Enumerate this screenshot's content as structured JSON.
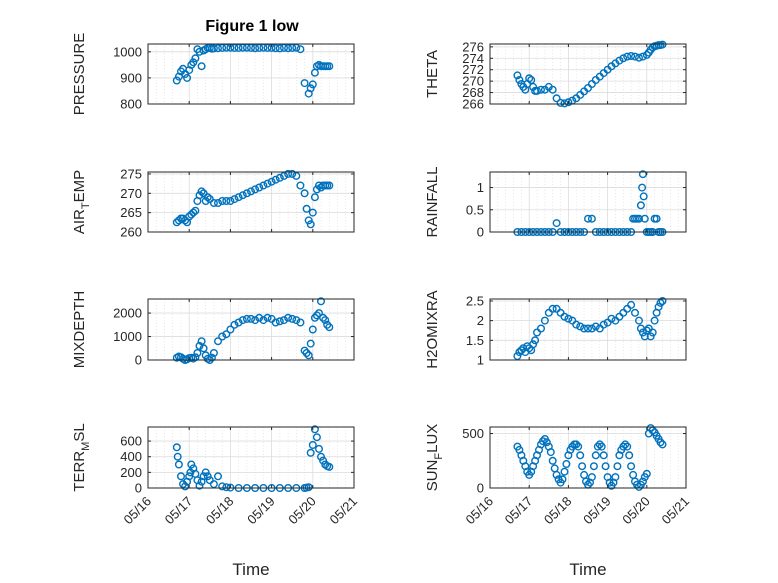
{
  "figure": {
    "title": "Figure 1 low"
  },
  "colors": {
    "marker": "#0072bd",
    "axis": "#262626",
    "grid": "#dcdcdc"
  },
  "chart_data": [
    {
      "type": "scatter",
      "title": "Figure 1 low",
      "ylabel": "PRESSURE",
      "ylabel_main": "PRESSURE",
      "ylabel_sub": "",
      "xlabel": "",
      "ylim": [
        800,
        1030
      ],
      "yticks": [
        800,
        900,
        1000
      ],
      "grid": true,
      "x": [
        16.7,
        16.75,
        16.8,
        16.85,
        16.9,
        16.95,
        17.0,
        17.05,
        17.1,
        17.15,
        17.2,
        17.25,
        17.3,
        17.35,
        17.4,
        17.45,
        17.5,
        17.55,
        17.6,
        17.7,
        17.8,
        17.9,
        18.0,
        18.1,
        18.2,
        18.3,
        18.4,
        18.5,
        18.6,
        18.7,
        18.8,
        18.9,
        19.0,
        19.1,
        19.2,
        19.3,
        19.4,
        19.5,
        19.6,
        19.7,
        19.8,
        19.9,
        19.95,
        20.0,
        20.05,
        20.1,
        20.15,
        20.2,
        20.25,
        20.3,
        20.35,
        20.4
      ],
      "y": [
        890,
        905,
        925,
        935,
        915,
        900,
        930,
        950,
        960,
        975,
        1010,
        1000,
        945,
        1005,
        1010,
        1015,
        1015,
        1012,
        1013,
        1014,
        1015,
        1016,
        1016,
        1015,
        1015,
        1016,
        1016,
        1015,
        1014,
        1015,
        1016,
        1015,
        1015,
        1014,
        1013,
        1015,
        1014,
        1015,
        1016,
        1010,
        880,
        840,
        860,
        875,
        920,
        945,
        950,
        945,
        945,
        945,
        945,
        945
      ]
    },
    {
      "type": "scatter",
      "ylabel": "THETA",
      "ylabel_main": "THETA",
      "ylabel_sub": "",
      "xlabel": "",
      "ylim": [
        266,
        276.5
      ],
      "yticks": [
        266,
        268,
        270,
        272,
        274,
        276
      ],
      "grid": true,
      "x": [
        16.7,
        16.75,
        16.8,
        16.85,
        16.9,
        16.95,
        17.0,
        17.05,
        17.1,
        17.15,
        17.2,
        17.3,
        17.4,
        17.5,
        17.6,
        17.7,
        17.8,
        17.9,
        18.0,
        18.1,
        18.2,
        18.3,
        18.4,
        18.5,
        18.6,
        18.7,
        18.8,
        18.9,
        19.0,
        19.1,
        19.2,
        19.3,
        19.4,
        19.5,
        19.6,
        19.7,
        19.8,
        19.9,
        20.0,
        20.05,
        20.1,
        20.15,
        20.2,
        20.25,
        20.3,
        20.35,
        20.4
      ],
      "y": [
        271,
        270.2,
        269.5,
        269,
        268.5,
        269.5,
        270.5,
        270.2,
        269,
        268.3,
        268.3,
        268.5,
        268.5,
        269,
        268.5,
        267,
        266.2,
        266.1,
        266.3,
        266.6,
        267,
        267.6,
        268.2,
        268.8,
        269.5,
        270.2,
        270.8,
        271.4,
        272,
        272.6,
        273.1,
        273.6,
        274,
        274.3,
        274.4,
        274.3,
        274.1,
        274.3,
        274.6,
        275,
        275.5,
        275.9,
        276.1,
        276.2,
        276.3,
        276.3,
        276.4
      ]
    },
    {
      "type": "scatter",
      "ylabel": "AIR_TEMP",
      "ylabel_main": "AIR",
      "ylabel_sub": "T",
      "ylabel_end": "EMP",
      "xlabel": "",
      "ylim": [
        260,
        275.5
      ],
      "yticks": [
        260,
        265,
        270,
        275
      ],
      "grid": true,
      "x": [
        16.7,
        16.75,
        16.8,
        16.85,
        16.9,
        16.95,
        17.0,
        17.05,
        17.1,
        17.15,
        17.2,
        17.25,
        17.3,
        17.35,
        17.4,
        17.45,
        17.5,
        17.6,
        17.7,
        17.8,
        17.9,
        18.0,
        18.1,
        18.2,
        18.3,
        18.4,
        18.5,
        18.6,
        18.7,
        18.8,
        18.9,
        19.0,
        19.1,
        19.2,
        19.3,
        19.4,
        19.5,
        19.6,
        19.7,
        19.8,
        19.85,
        19.9,
        19.95,
        20.0,
        20.05,
        20.1,
        20.15,
        20.2,
        20.25,
        20.3,
        20.35,
        20.4
      ],
      "y": [
        262.5,
        263,
        263.5,
        263.5,
        263,
        262.5,
        264,
        264.5,
        265,
        265.5,
        268,
        269.5,
        270.5,
        270,
        268,
        269,
        268.5,
        267.5,
        267.5,
        268,
        268,
        268,
        268.5,
        269,
        269.5,
        270,
        270.5,
        271,
        271.5,
        272,
        272.5,
        273,
        273.5,
        274,
        274.5,
        275,
        275,
        274.5,
        272,
        270,
        266,
        263,
        262,
        265,
        269,
        271,
        272,
        271.5,
        272,
        272,
        272,
        272
      ]
    },
    {
      "type": "scatter",
      "ylabel": "RAINFALL",
      "ylabel_main": "RAINFALL",
      "ylabel_sub": "",
      "xlabel": "",
      "ylim": [
        0,
        1.35
      ],
      "yticks": [
        0,
        0.5,
        1
      ],
      "grid": true,
      "x": [
        16.7,
        16.8,
        16.9,
        17.0,
        17.1,
        17.2,
        17.3,
        17.4,
        17.5,
        17.6,
        17.7,
        17.8,
        17.9,
        18.0,
        18.1,
        18.2,
        18.3,
        18.4,
        18.5,
        18.6,
        18.7,
        18.8,
        18.9,
        19.0,
        19.1,
        19.2,
        19.3,
        19.4,
        19.5,
        19.6,
        19.65,
        19.7,
        19.75,
        19.8,
        19.85,
        19.88,
        19.9,
        19.92,
        19.95,
        20.0,
        20.05,
        20.1,
        20.15,
        20.2,
        20.25,
        20.3,
        20.35,
        20.4
      ],
      "y": [
        0,
        0,
        0,
        0,
        0,
        0,
        0,
        0,
        0,
        0,
        0.2,
        0,
        0,
        0,
        0,
        0,
        0,
        0,
        0.3,
        0.3,
        0,
        0,
        0,
        0,
        0,
        0,
        0,
        0,
        0,
        0,
        0.3,
        0.3,
        0.3,
        0.3,
        0.6,
        1.0,
        1.3,
        0.8,
        0.3,
        0,
        0,
        0,
        0,
        0.3,
        0.3,
        0,
        0,
        0
      ]
    },
    {
      "type": "scatter",
      "ylabel": "MIXDEPTH",
      "ylabel_main": "MIXDEPTH",
      "ylabel_sub": "",
      "xlabel": "",
      "ylim": [
        0,
        2600
      ],
      "yticks": [
        0,
        1000,
        2000
      ],
      "grid": true,
      "x": [
        16.7,
        16.75,
        16.8,
        16.85,
        16.9,
        16.95,
        17.0,
        17.05,
        17.1,
        17.15,
        17.2,
        17.25,
        17.3,
        17.35,
        17.4,
        17.45,
        17.5,
        17.55,
        17.6,
        17.7,
        17.8,
        17.9,
        18.0,
        18.1,
        18.2,
        18.3,
        18.4,
        18.5,
        18.6,
        18.7,
        18.8,
        18.9,
        19.0,
        19.1,
        19.2,
        19.3,
        19.4,
        19.5,
        19.6,
        19.7,
        19.8,
        19.85,
        19.9,
        19.95,
        20.0,
        20.05,
        20.1,
        20.15,
        20.2,
        20.25,
        20.3,
        20.35,
        20.4
      ],
      "y": [
        100,
        150,
        120,
        50,
        0,
        30,
        80,
        100,
        60,
        120,
        300,
        600,
        800,
        500,
        200,
        50,
        0,
        100,
        300,
        800,
        1000,
        1100,
        1300,
        1500,
        1600,
        1700,
        1750,
        1750,
        1700,
        1800,
        1700,
        1800,
        1750,
        1600,
        1650,
        1700,
        1800,
        1750,
        1700,
        1600,
        400,
        300,
        200,
        700,
        1300,
        1800,
        1900,
        2000,
        2500,
        1800,
        1700,
        1500,
        1400
      ]
    },
    {
      "type": "scatter",
      "ylabel": "H2OMIXRA",
      "ylabel_main": "H2OMIXRA",
      "ylabel_sub": "",
      "xlabel": "",
      "ylim": [
        1,
        2.55
      ],
      "yticks": [
        1,
        1.5,
        2,
        2.5
      ],
      "grid": true,
      "x": [
        16.7,
        16.75,
        16.8,
        16.85,
        16.9,
        16.95,
        17.0,
        17.05,
        17.1,
        17.15,
        17.2,
        17.3,
        17.4,
        17.5,
        17.6,
        17.7,
        17.8,
        17.9,
        18.0,
        18.1,
        18.2,
        18.3,
        18.4,
        18.5,
        18.6,
        18.7,
        18.8,
        18.9,
        19.0,
        19.1,
        19.2,
        19.3,
        19.4,
        19.5,
        19.6,
        19.7,
        19.8,
        19.85,
        19.9,
        19.95,
        20.0,
        20.05,
        20.1,
        20.15,
        20.2,
        20.25,
        20.3,
        20.35,
        20.4
      ],
      "y": [
        1.1,
        1.2,
        1.25,
        1.3,
        1.2,
        1.35,
        1.3,
        1.25,
        1.4,
        1.5,
        1.7,
        1.8,
        2.0,
        2.2,
        2.3,
        2.3,
        2.2,
        2.1,
        2.05,
        2.0,
        1.9,
        1.85,
        1.8,
        1.8,
        1.8,
        1.85,
        1.8,
        1.9,
        1.95,
        2.05,
        2.0,
        2.1,
        2.2,
        2.3,
        2.4,
        2.2,
        2.0,
        1.8,
        1.7,
        1.6,
        1.75,
        1.8,
        1.6,
        1.7,
        2.0,
        2.2,
        2.35,
        2.45,
        2.5
      ]
    },
    {
      "type": "scatter",
      "ylabel": "TERR_MSL",
      "ylabel_main": "TERR",
      "ylabel_sub": "M",
      "ylabel_end": "SL",
      "xlabel": "Time",
      "ylim": [
        0,
        780
      ],
      "yticks": [
        0,
        200,
        400,
        600
      ],
      "grid": true,
      "xticklabels": [
        "05/16",
        "05/17",
        "05/18",
        "05/19",
        "05/20",
        "05/21"
      ],
      "x": [
        16.7,
        16.72,
        16.75,
        16.8,
        16.85,
        16.9,
        16.95,
        17.0,
        17.03,
        17.05,
        17.1,
        17.15,
        17.2,
        17.25,
        17.3,
        17.35,
        17.4,
        17.45,
        17.5,
        17.6,
        17.7,
        17.8,
        17.9,
        18.0,
        18.2,
        18.4,
        18.6,
        18.8,
        19.0,
        19.2,
        19.4,
        19.6,
        19.8,
        19.85,
        19.9,
        19.95,
        20.0,
        20.05,
        20.1,
        20.15,
        20.2,
        20.25,
        20.3,
        20.35,
        20.4
      ],
      "y": [
        520,
        400,
        300,
        150,
        50,
        20,
        80,
        150,
        200,
        300,
        250,
        180,
        100,
        30,
        80,
        150,
        200,
        150,
        100,
        50,
        150,
        20,
        10,
        5,
        0,
        0,
        0,
        0,
        0,
        0,
        0,
        0,
        0,
        5,
        10,
        450,
        550,
        750,
        650,
        500,
        400,
        350,
        300,
        280,
        270
      ]
    },
    {
      "type": "scatter",
      "ylabel": "SUN_FLUX",
      "ylabel_main": "SUN",
      "ylabel_sub": "F",
      "ylabel_end": "LUX",
      "xlabel": "Time",
      "ylim": [
        0,
        560
      ],
      "yticks": [
        0,
        500
      ],
      "grid": true,
      "xticklabels": [
        "05/16",
        "05/17",
        "05/18",
        "05/19",
        "05/20",
        "05/21"
      ],
      "x": [
        16.7,
        16.75,
        16.8,
        16.85,
        16.9,
        16.95,
        17.0,
        17.05,
        17.1,
        17.15,
        17.2,
        17.25,
        17.3,
        17.35,
        17.4,
        17.45,
        17.5,
        17.55,
        17.6,
        17.65,
        17.7,
        17.75,
        17.8,
        17.85,
        17.9,
        17.95,
        18.0,
        18.05,
        18.1,
        18.15,
        18.2,
        18.25,
        18.3,
        18.35,
        18.4,
        18.45,
        18.5,
        18.55,
        18.6,
        18.65,
        18.7,
        18.75,
        18.8,
        18.85,
        18.9,
        18.95,
        19.0,
        19.05,
        19.1,
        19.15,
        19.2,
        19.25,
        19.3,
        19.35,
        19.4,
        19.45,
        19.5,
        19.55,
        19.6,
        19.65,
        19.7,
        19.75,
        19.8,
        19.85,
        19.9,
        19.95,
        20.0,
        20.05,
        20.1,
        20.15,
        20.2,
        20.25,
        20.3,
        20.35,
        20.4
      ],
      "y": [
        380,
        350,
        300,
        250,
        200,
        150,
        120,
        150,
        200,
        250,
        300,
        350,
        400,
        430,
        450,
        420,
        380,
        330,
        250,
        180,
        120,
        80,
        50,
        80,
        150,
        220,
        300,
        350,
        380,
        400,
        400,
        380,
        300,
        200,
        120,
        60,
        30,
        50,
        100,
        200,
        300,
        380,
        400,
        380,
        300,
        200,
        100,
        50,
        20,
        50,
        100,
        200,
        300,
        350,
        380,
        400,
        380,
        300,
        200,
        120,
        60,
        30,
        10,
        30,
        60,
        100,
        130,
        500,
        550,
        530,
        510,
        480,
        450,
        420,
        400
      ]
    }
  ]
}
